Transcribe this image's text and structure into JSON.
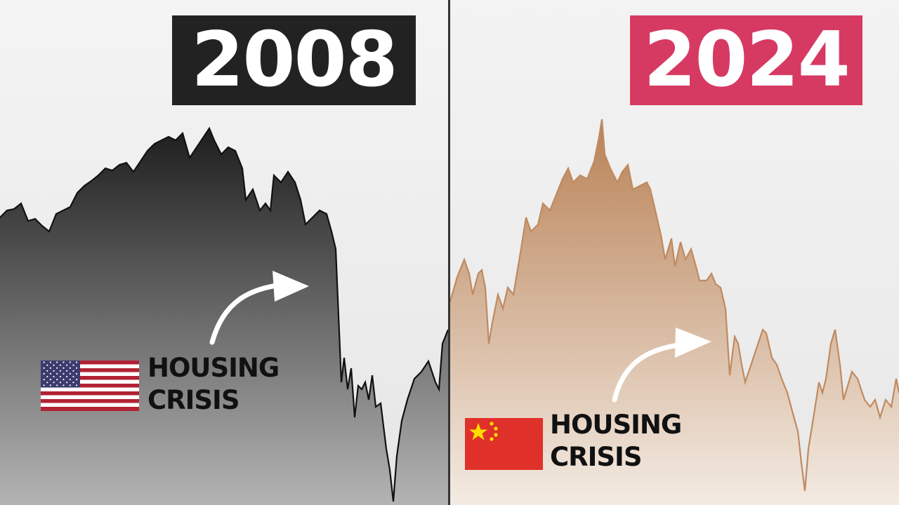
{
  "panels": [
    {
      "year": "2008",
      "year_box_color": "#222222",
      "label_line1": "HOUSING",
      "label_line2": "CRISIS",
      "flag": "us-flag-icon",
      "line_color": "#111111",
      "fill_top": "#1e1e1e",
      "fill_bottom": "#b4b4b4"
    },
    {
      "year": "2024",
      "year_box_color": "#d63a62",
      "label_line1": "HOUSING",
      "label_line2": "CRISIS",
      "flag": "china-flag-icon",
      "line_color": "#c08a60",
      "fill_top": "#b98256",
      "fill_bottom": "#f3ebe3"
    }
  ],
  "chart_data": [
    {
      "type": "area",
      "title": "2008",
      "annotation": "HOUSING CRISIS",
      "grid": false,
      "xlim": [
        0,
        638
      ],
      "ylim": [
        0,
        720
      ],
      "points": [
        [
          0,
          410
        ],
        [
          10,
          420
        ],
        [
          20,
          422
        ],
        [
          30,
          430
        ],
        [
          40,
          405
        ],
        [
          50,
          408
        ],
        [
          60,
          398
        ],
        [
          70,
          390
        ],
        [
          80,
          415
        ],
        [
          90,
          420
        ],
        [
          100,
          425
        ],
        [
          110,
          445
        ],
        [
          120,
          455
        ],
        [
          130,
          462
        ],
        [
          140,
          470
        ],
        [
          150,
          480
        ],
        [
          160,
          477
        ],
        [
          170,
          485
        ],
        [
          180,
          488
        ],
        [
          190,
          475
        ],
        [
          200,
          490
        ],
        [
          210,
          505
        ],
        [
          220,
          515
        ],
        [
          230,
          520
        ],
        [
          240,
          525
        ],
        [
          250,
          520
        ],
        [
          260,
          530
        ],
        [
          270,
          495
        ],
        [
          280,
          510
        ],
        [
          290,
          525
        ],
        [
          298,
          537
        ],
        [
          305,
          520
        ],
        [
          315,
          500
        ],
        [
          325,
          510
        ],
        [
          335,
          505
        ],
        [
          345,
          480
        ],
        [
          350,
          435
        ],
        [
          360,
          450
        ],
        [
          370,
          420
        ],
        [
          378,
          430
        ],
        [
          385,
          420
        ],
        [
          390,
          470
        ],
        [
          400,
          460
        ],
        [
          410,
          475
        ],
        [
          420,
          460
        ],
        [
          428,
          435
        ],
        [
          435,
          400
        ],
        [
          445,
          410
        ],
        [
          455,
          420
        ],
        [
          465,
          415
        ],
        [
          472,
          390
        ],
        [
          478,
          365
        ],
        [
          482,
          270
        ],
        [
          486,
          175
        ],
        [
          490,
          210
        ],
        [
          495,
          165
        ],
        [
          500,
          195
        ],
        [
          505,
          125
        ],
        [
          510,
          170
        ],
        [
          515,
          165
        ],
        [
          520,
          175
        ],
        [
          525,
          150
        ],
        [
          530,
          185
        ],
        [
          535,
          140
        ],
        [
          542,
          145
        ],
        [
          550,
          80
        ],
        [
          555,
          50
        ],
        [
          560,
          5
        ],
        [
          565,
          70
        ],
        [
          572,
          120
        ],
        [
          580,
          150
        ],
        [
          590,
          180
        ],
        [
          600,
          190
        ],
        [
          610,
          205
        ],
        [
          615,
          190
        ],
        [
          620,
          175
        ],
        [
          625,
          165
        ],
        [
          630,
          230
        ],
        [
          638,
          250
        ]
      ]
    },
    {
      "type": "area",
      "title": "2024",
      "annotation": "HOUSING CRISIS",
      "grid": false,
      "xlim": [
        0,
        639
      ],
      "ylim": [
        0,
        720
      ],
      "points": [
        [
          0,
          290
        ],
        [
          10,
          325
        ],
        [
          20,
          350
        ],
        [
          27,
          330
        ],
        [
          32,
          300
        ],
        [
          40,
          330
        ],
        [
          45,
          335
        ],
        [
          50,
          310
        ],
        [
          55,
          230
        ],
        [
          60,
          260
        ],
        [
          68,
          300
        ],
        [
          75,
          280
        ],
        [
          82,
          310
        ],
        [
          90,
          300
        ],
        [
          100,
          360
        ],
        [
          108,
          410
        ],
        [
          115,
          390
        ],
        [
          125,
          400
        ],
        [
          132,
          430
        ],
        [
          142,
          420
        ],
        [
          150,
          440
        ],
        [
          160,
          465
        ],
        [
          168,
          480
        ],
        [
          175,
          460
        ],
        [
          185,
          470
        ],
        [
          195,
          465
        ],
        [
          205,
          490
        ],
        [
          212,
          525
        ],
        [
          216,
          550
        ],
        [
          220,
          500
        ],
        [
          228,
          480
        ],
        [
          238,
          460
        ],
        [
          245,
          475
        ],
        [
          253,
          485
        ],
        [
          260,
          450
        ],
        [
          270,
          455
        ],
        [
          280,
          460
        ],
        [
          285,
          450
        ],
        [
          292,
          420
        ],
        [
          300,
          385
        ],
        [
          306,
          350
        ],
        [
          315,
          380
        ],
        [
          320,
          340
        ],
        [
          328,
          375
        ],
        [
          335,
          350
        ],
        [
          343,
          365
        ],
        [
          350,
          340
        ],
        [
          355,
          320
        ],
        [
          365,
          320
        ],
        [
          372,
          330
        ],
        [
          378,
          315
        ],
        [
          385,
          310
        ],
        [
          392,
          280
        ],
        [
          398,
          185
        ],
        [
          405,
          240
        ],
        [
          410,
          230
        ],
        [
          415,
          200
        ],
        [
          420,
          175
        ],
        [
          425,
          190
        ],
        [
          435,
          220
        ],
        [
          445,
          250
        ],
        [
          450,
          245
        ],
        [
          458,
          210
        ],
        [
          465,
          200
        ],
        [
          472,
          180
        ],
        [
          480,
          160
        ],
        [
          488,
          130
        ],
        [
          495,
          105
        ],
        [
          500,
          60
        ],
        [
          505,
          20
        ],
        [
          510,
          80
        ],
        [
          518,
          130
        ],
        [
          525,
          175
        ],
        [
          530,
          160
        ],
        [
          535,
          180
        ],
        [
          542,
          230
        ],
        [
          548,
          250
        ],
        [
          555,
          200
        ],
        [
          560,
          150
        ],
        [
          566,
          170
        ],
        [
          572,
          190
        ],
        [
          580,
          180
        ],
        [
          590,
          150
        ],
        [
          598,
          140
        ],
        [
          605,
          150
        ],
        [
          612,
          125
        ],
        [
          620,
          150
        ],
        [
          628,
          140
        ],
        [
          635,
          180
        ],
        [
          639,
          160
        ]
      ]
    }
  ]
}
